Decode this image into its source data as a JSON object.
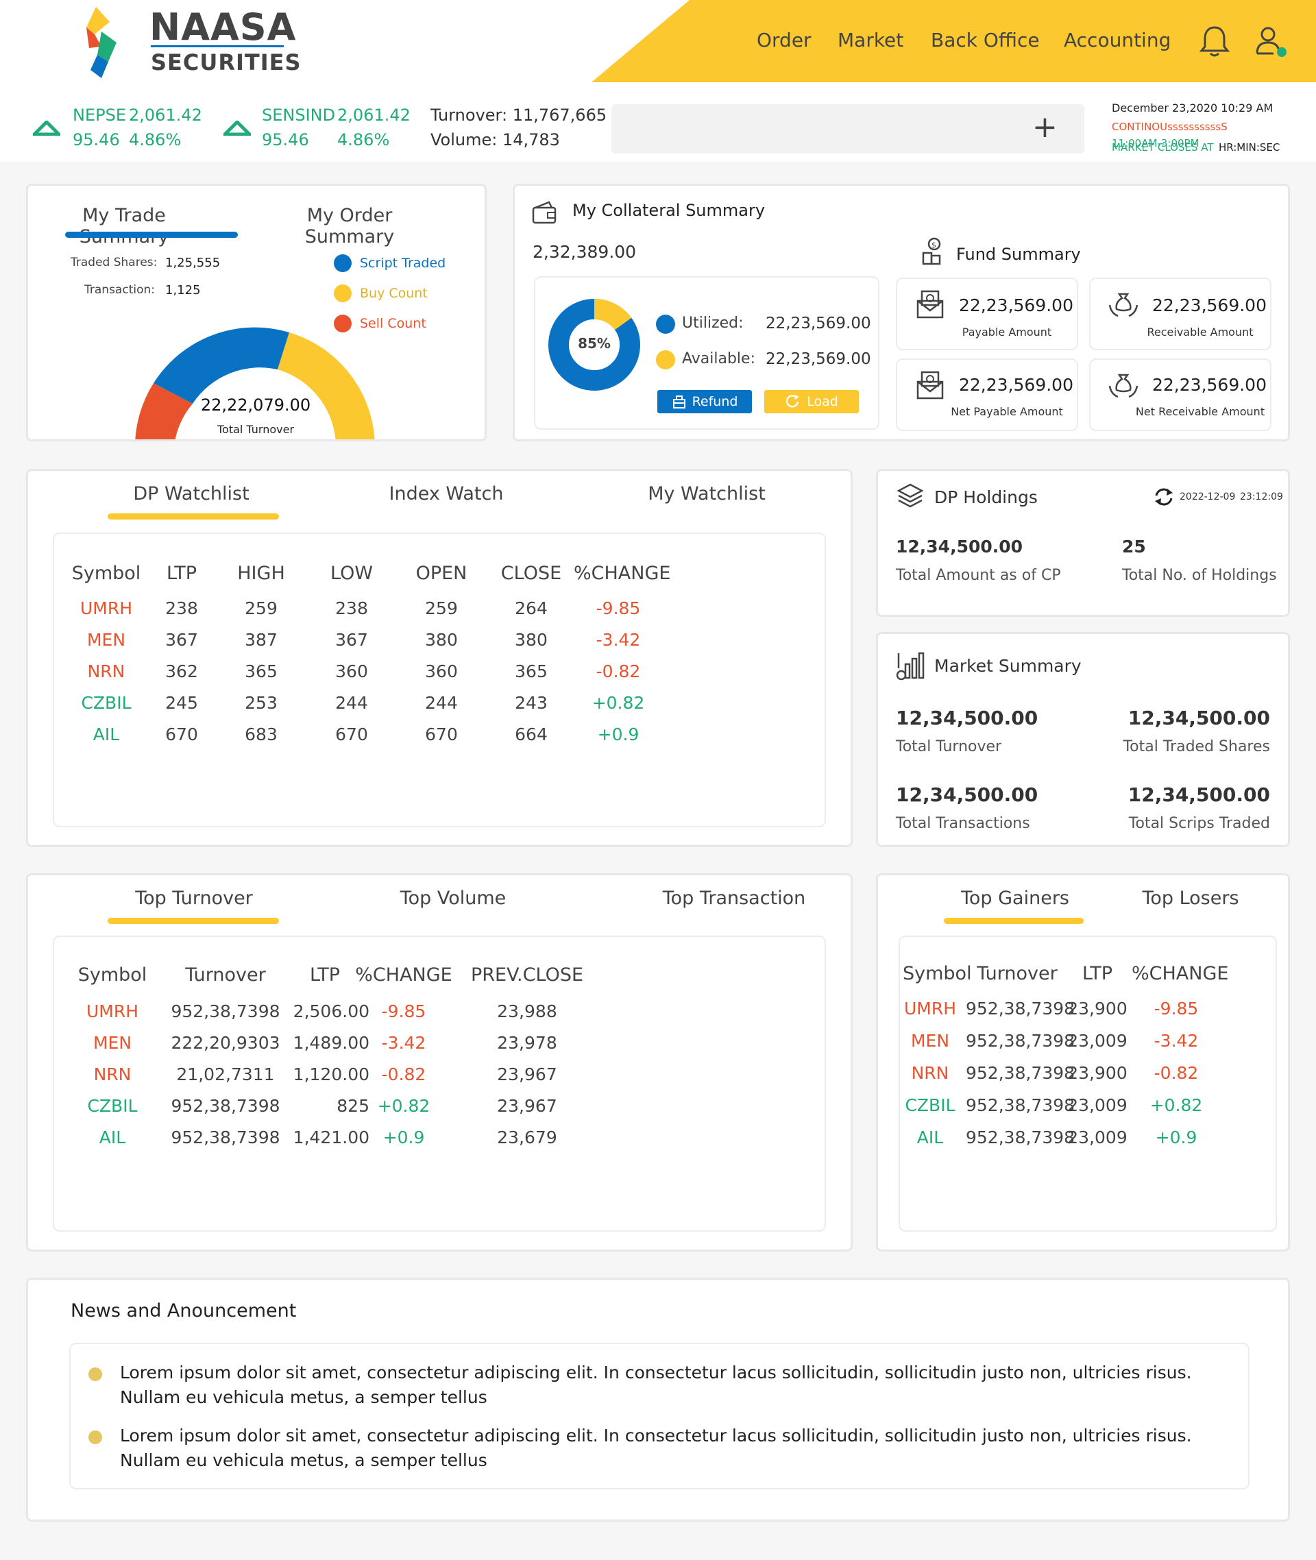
{
  "brand": {
    "name": "NAASA",
    "sub": "SECURITIES",
    "colors": {
      "accent": "#fcc82f",
      "blue": "#0a72c3",
      "red": "#e8532d",
      "green": "#1fac78"
    }
  },
  "nav": {
    "items": [
      "Order",
      "Market",
      "Back Office",
      "Accounting"
    ],
    "icons": [
      "bell-icon",
      "user-icon"
    ]
  },
  "ticker": {
    "nepse": {
      "name": "NEPSE",
      "value": "2,061.42",
      "change": "95.46",
      "pct": "4.86%"
    },
    "sensind": {
      "name": "SENSIND",
      "value": "2,061.42",
      "change": "95.46",
      "pct": "4.86%"
    },
    "turnover": "Turnover: 11,767,665",
    "volume": "Volume: 14,783",
    "datetime": "December 23,2020 10:29 AM",
    "status": "CONTINOUssssssssssS",
    "hours": "11:00AM-3:00PM",
    "closes": "MARKET CLOSES AT",
    "countdown": "HR:MIN:SEC"
  },
  "trade_summary": {
    "tabs": [
      "My Trade Summary",
      "My Order Summary"
    ],
    "traded_shares_label": "Traded Shares:",
    "traded_shares": "1,25,555",
    "transaction_label": "Transaction:",
    "transaction": "1,125",
    "legend": [
      "Script Traded",
      "Buy Count",
      "Sell Count"
    ],
    "total": "22,22,079.00",
    "total_label": "Total Turnover"
  },
  "collateral": {
    "title": "My Collateral Summary",
    "amount": "2,32,389.00",
    "pct": "85%",
    "utilized_label": "Utilized:",
    "utilized": "22,23,569.00",
    "available_label": "Available:",
    "available": "22,23,569.00",
    "refund": "Refund",
    "load": "Load"
  },
  "fund": {
    "title": "Fund Summary",
    "items": [
      {
        "value": "22,23,569.00",
        "label": "Payable Amount"
      },
      {
        "value": "22,23,569.00",
        "label": "Receivable Amount"
      },
      {
        "value": "22,23,569.00",
        "label": "Net Payable Amount"
      },
      {
        "value": "22,23,569.00",
        "label": "Net Receivable Amount"
      }
    ]
  },
  "watch": {
    "tabs": [
      "DP Watchlist",
      "Index Watch",
      "My Watchlist"
    ],
    "headers": [
      "Symbol",
      "LTP",
      "HIGH",
      "LOW",
      "OPEN",
      "CLOSE",
      "%CHANGE"
    ],
    "rows": [
      [
        "UMRH",
        "238",
        "259",
        "238",
        "259",
        "264",
        "-9.85"
      ],
      [
        "MEN",
        "367",
        "387",
        "367",
        "380",
        "380",
        "-3.42"
      ],
      [
        "NRN",
        "362",
        "365",
        "360",
        "360",
        "365",
        "-0.82"
      ],
      [
        "CZBIL",
        "245",
        "253",
        "244",
        "244",
        "243",
        "+0.82"
      ],
      [
        "AIL",
        "670",
        "683",
        "670",
        "670",
        "664",
        "+0.9"
      ]
    ]
  },
  "holdings": {
    "title": "DP Holdings",
    "date": "2022-12-09",
    "time": "23:12:09",
    "amount": "12,34,500.00",
    "amount_label": "Total Amount as of CP",
    "count": "25",
    "count_label": "Total No. of Holdings"
  },
  "market_summary": {
    "title": "Market Summary",
    "items": [
      {
        "value": "12,34,500.00",
        "label": "Total Turnover"
      },
      {
        "value": "12,34,500.00",
        "label": "Total Traded Shares"
      },
      {
        "value": "12,34,500.00",
        "label": "Total Transactions"
      },
      {
        "value": "12,34,500.00",
        "label": "Total Scrips Traded"
      }
    ]
  },
  "top": {
    "tabs": [
      "Top Turnover",
      "Top Volume",
      "Top Transaction"
    ],
    "headers": [
      "Symbol",
      "Turnover",
      "LTP",
      "%CHANGE",
      "PREV.CLOSE"
    ],
    "rows": [
      [
        "UMRH",
        "952,38,7398",
        "2,506.00",
        "-9.85",
        "23,988"
      ],
      [
        "MEN",
        "222,20,9303",
        "1,489.00",
        "-3.42",
        "23,978"
      ],
      [
        "NRN",
        "21,02,7311",
        "1,120.00",
        "-0.82",
        "23,967"
      ],
      [
        "CZBIL",
        "952,38,7398",
        "825",
        "+0.82",
        "23,967"
      ],
      [
        "AIL",
        "952,38,7398",
        "1,421.00",
        "+0.9",
        "23,679"
      ]
    ]
  },
  "gainers": {
    "tabs": [
      "Top Gainers",
      "Top Losers"
    ],
    "headers": [
      "Symbol",
      "Turnover",
      "LTP",
      "%CHANGE"
    ],
    "rows": [
      [
        "UMRH",
        "952,38,7398",
        "23,900",
        "-9.85"
      ],
      [
        "MEN",
        "952,38,7398",
        "23,009",
        "-3.42"
      ],
      [
        "NRN",
        "952,38,7398",
        "23,900",
        "-0.82"
      ],
      [
        "CZBIL",
        "952,38,7398",
        "23,009",
        "+0.82"
      ],
      [
        "AIL",
        "952,38,7398",
        "23,009",
        "+0.9"
      ]
    ]
  },
  "news": {
    "title": "News and Anouncement",
    "items": [
      "Lorem ipsum dolor sit amet, consectetur adipiscing elit. In consectetur lacus sollicitudin, sollicitudin justo non, ultricies risus. Nullam eu vehicula metus, a semper tellus",
      "Lorem ipsum dolor sit amet, consectetur adipiscing elit. In consectetur lacus sollicitudin, sollicitudin justo non, ultricies risus. Nullam eu vehicula metus, a semper tellus"
    ]
  }
}
